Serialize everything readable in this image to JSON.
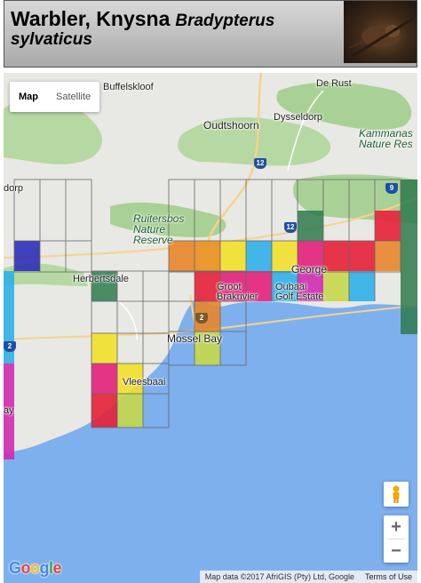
{
  "header": {
    "common_name": "Warbler, Knysna",
    "scientific_name": "Bradypterus sylvaticus"
  },
  "map_type": {
    "map": "Map",
    "satellite": "Satellite",
    "selected": "Map"
  },
  "places": {
    "buffelskloof": "Buffelskloof",
    "de_rust": "De Rust",
    "oudtshoorn": "Oudtshoorn",
    "dysseldorp": "Dysseldorp",
    "kammanassie": "Kammanas Nature Res",
    "dorp": "dorp",
    "ruitersbos": "Ruitersbos Nature Reserve",
    "herbertsdale": "Herbertsdale",
    "george": "George",
    "groot_brakrivier": "Groot Brakrivier",
    "oubaai": "Oubaai Golf Estate",
    "mossel_bay": "Mossel Bay",
    "vleesbaai": "Vleesbaai",
    "ay": "ay"
  },
  "roads": {
    "r12a": "12",
    "r12b": "12",
    "r9": "9",
    "r2a": "2",
    "r2b": "2"
  },
  "controls": {
    "zoom_in": "+",
    "zoom_out": "−"
  },
  "attribution": {
    "map_data": "Map data ©2017 AfriGIS (Pty) Ltd, Google",
    "terms": "Terms of Use",
    "logo": "Google"
  },
  "colors": {
    "ocean": "#7eb0ee",
    "land": "#e8e8e4",
    "vegetation": "#9fcb8e",
    "grid_line": "#666666"
  }
}
